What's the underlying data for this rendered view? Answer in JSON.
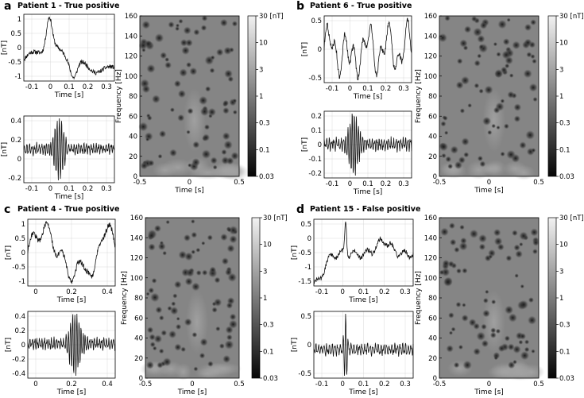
{
  "panels": [
    {
      "letter": "a",
      "title": "Patient 1 -  True positive",
      "raw": {
        "y_ticks": [
          "1",
          "0.5",
          "0",
          "-0.5",
          "-1"
        ],
        "y_label": "[nT]",
        "x_ticks": [
          "-0.1",
          "0",
          "0.1",
          "0.2",
          "0.3"
        ],
        "x_label": "Time [s]"
      },
      "filtered": {
        "y_ticks": [
          "0.4",
          "0.2",
          "0",
          "-0.2"
        ],
        "y_label": "[nT]",
        "x_ticks": [
          "-0.1",
          "0",
          "0.1",
          "0.2",
          "0.3"
        ],
        "x_label": "Time [s]"
      },
      "tf": {
        "y_ticks": [
          "160",
          "140",
          "120",
          "100",
          "80",
          "60",
          "40",
          "20",
          "0"
        ],
        "y_label": "Frequency [Hz]",
        "x_ticks": [
          "-0.5",
          "0",
          "0.5"
        ],
        "x_label": "Time [s]"
      },
      "colorbar": {
        "ticks": [
          "30 [nT]",
          "10",
          "3",
          "1",
          "0.3",
          "0.1",
          "0.03"
        ]
      }
    },
    {
      "letter": "b",
      "title": "Patient 6 -  True positive",
      "raw": {
        "y_ticks": [
          "0.5",
          "0",
          "-0.5"
        ],
        "y_label": "[nT]",
        "x_ticks": [
          "-0.1",
          "0",
          "0.1",
          "0.2",
          "0.3"
        ],
        "x_label": "Time [s]"
      },
      "filtered": {
        "y_ticks": [
          "0.2",
          "0.1",
          "0",
          "-0.1",
          "-0.2"
        ],
        "y_label": "[nT]",
        "x_ticks": [
          "-0.1",
          "0",
          "0.1",
          "0.2",
          "0.3"
        ],
        "x_label": "Time [s]"
      },
      "tf": {
        "y_ticks": [
          "160",
          "140",
          "120",
          "100",
          "80",
          "60",
          "40",
          "20",
          "0"
        ],
        "y_label": "Frequency [Hz]",
        "x_ticks": [
          "-0.5",
          "0",
          "0.5"
        ],
        "x_label": "Time [s]"
      },
      "colorbar": {
        "ticks": [
          "30 [nT]",
          "10",
          "3",
          "1",
          "0.3",
          "0.1",
          "0.03"
        ]
      }
    },
    {
      "letter": "c",
      "title": "Patient 4 -  True positive",
      "raw": {
        "y_ticks": [
          "1",
          "0.5",
          "0",
          "-0.5",
          "-1"
        ],
        "y_label": "[nT]",
        "x_ticks": [
          "0",
          "0.2",
          "0.4"
        ],
        "x_label": "Time [s]"
      },
      "filtered": {
        "y_ticks": [
          "0.4",
          "0.2",
          "0",
          "-0.2",
          "-0.4"
        ],
        "y_label": "[nT]",
        "x_ticks": [
          "0",
          "0.2",
          "0.4"
        ],
        "x_label": "Time [s]"
      },
      "tf": {
        "y_ticks": [
          "160",
          "140",
          "120",
          "100",
          "80",
          "60",
          "40",
          "20",
          "0"
        ],
        "y_label": "Frequency [Hz]",
        "x_ticks": [
          "-0.5",
          "0",
          "0.5"
        ],
        "x_label": "Time [s]"
      },
      "colorbar": {
        "ticks": [
          "30 [nT]",
          "10",
          "3",
          "1",
          "0.3",
          "0.1",
          "0.03"
        ]
      }
    },
    {
      "letter": "d",
      "title": "Patient 15 - False positive",
      "raw": {
        "y_ticks": [
          "0.5",
          "0",
          "-0.5",
          "-1",
          "-1.5"
        ],
        "y_label": "[nT]",
        "x_ticks": [
          "-0.1",
          "0",
          "0.1",
          "0.2",
          "0.3"
        ],
        "x_label": "Time [s]"
      },
      "filtered": {
        "y_ticks": [
          "0.5",
          "0",
          "-0.5"
        ],
        "y_label": "[nT]",
        "x_ticks": [
          "-0.1",
          "0",
          "0.1",
          "0.2",
          "0.3"
        ],
        "x_label": "Time [s]"
      },
      "tf": {
        "y_ticks": [
          "160",
          "140",
          "120",
          "100",
          "80",
          "60",
          "40",
          "20",
          "0"
        ],
        "y_label": "Frequency [Hz]",
        "x_ticks": [
          "-0.5",
          "0",
          "0.5"
        ],
        "x_label": "Time [s]"
      },
      "colorbar": {
        "ticks": [
          "30 [nT]",
          "10",
          "3",
          "1",
          "0.3",
          "0.1",
          "0.03"
        ]
      }
    }
  ]
}
